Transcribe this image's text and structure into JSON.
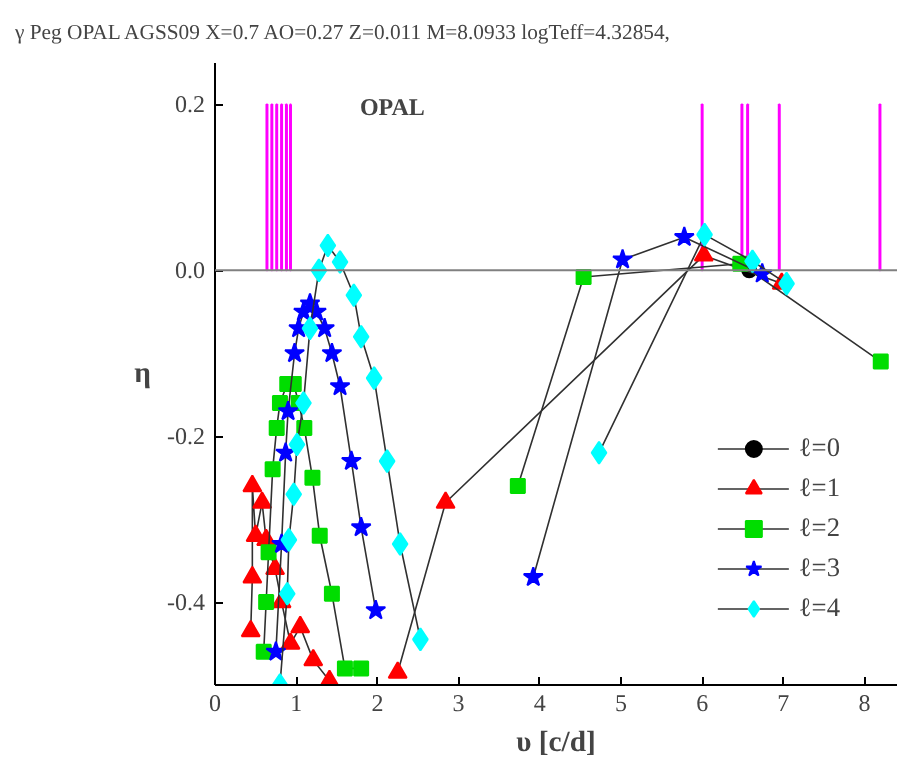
{
  "chart_data": {
    "type": "line",
    "title": "γ Peg OPAL  AGSS09 X=0.7 AO=0.27 Z=0.011 M=8.0933 logTeff=4.32854,",
    "xlabel": "υ [c/d]",
    "ylabel": "η",
    "annotations": [
      "OPAL"
    ],
    "xlim": [
      0,
      8.4
    ],
    "ylim": [
      -0.5,
      0.25
    ],
    "xticks": [
      0,
      1,
      2,
      3,
      4,
      5,
      6,
      7,
      8
    ],
    "yticks": [
      {
        "value": -0.4,
        "label": "-0.4"
      },
      {
        "value": -0.2,
        "label": "-0.2"
      },
      {
        "value": 0.0,
        "label": "0.0"
      },
      {
        "value": 0.2,
        "label": "0.2"
      }
    ],
    "ref_lines": [
      {
        "axis": "y",
        "value": 0,
        "color": "#808080"
      }
    ],
    "grid": false,
    "legend": "bottom right",
    "line_style": "solid",
    "series": [
      {
        "type": "bar",
        "color": "#ff00ff",
        "x": [
          0.64,
          0.7,
          0.76,
          0.82,
          0.88,
          0.93,
          6.0,
          6.49,
          6.56,
          6.95,
          8.19
        ],
        "values": [
          0.2,
          0.2,
          0.2,
          0.2,
          0.2,
          0.2,
          0.2,
          0.2,
          0.2,
          0.2,
          0.2
        ]
      },
      {
        "name": "ℓ=0",
        "color": "#000000",
        "marker": "circle",
        "x": [
          6.58
        ],
        "values": [
          0.0
        ]
      },
      {
        "name": "ℓ=1",
        "color": "#ff0000",
        "marker": "triangle",
        "x": [
          0.44,
          0.46,
          0.46,
          0.5,
          0.58,
          0.63,
          0.74,
          0.82,
          0.93,
          1.05,
          1.21,
          1.41,
          1.8,
          2.25,
          2.84,
          6.02,
          6.98
        ],
        "values": [
          -0.435,
          -0.37,
          -0.26,
          -0.32,
          -0.28,
          -0.325,
          -0.36,
          -0.4,
          -0.45,
          -0.43,
          -0.47,
          -0.495,
          null,
          -0.485,
          -0.28,
          0.018,
          -0.016
        ]
      },
      {
        "name": "ℓ=2",
        "color": "#00dd00",
        "marker": "square",
        "x": [
          0.6,
          0.63,
          0.66,
          0.71,
          0.76,
          0.8,
          0.89,
          0.97,
          1.03,
          1.1,
          1.2,
          1.29,
          1.44,
          1.6,
          1.8,
          2.8,
          3.73,
          4.54,
          6.47,
          8.2
        ],
        "values": [
          -0.46,
          -0.4,
          -0.34,
          -0.24,
          -0.19,
          -0.16,
          -0.137,
          -0.137,
          -0.16,
          -0.19,
          -0.25,
          -0.32,
          -0.39,
          -0.48,
          -0.48,
          null,
          -0.26,
          -0.008,
          0.008,
          -0.11
        ]
      },
      {
        "name": "ℓ=3",
        "color": "#0000ff",
        "marker": "star",
        "x": [
          0.75,
          0.82,
          0.87,
          0.9,
          0.98,
          1.03,
          1.09,
          1.17,
          1.25,
          1.35,
          1.44,
          1.54,
          1.68,
          1.8,
          1.98,
          3.0,
          3.92,
          5.02,
          5.78,
          6.74
        ],
        "values": [
          -0.46,
          -0.33,
          -0.22,
          -0.17,
          -0.1,
          -0.07,
          -0.05,
          -0.04,
          -0.05,
          -0.07,
          -0.1,
          -0.14,
          -0.23,
          -0.31,
          -0.41,
          null,
          -0.37,
          0.013,
          0.04,
          -0.004
        ]
      },
      {
        "name": "ℓ=4",
        "color": "#00ffff",
        "marker": "diamond",
        "x": [
          0.8,
          0.89,
          0.91,
          0.97,
          1.01,
          1.09,
          1.17,
          1.28,
          1.39,
          1.54,
          1.71,
          1.8,
          1.96,
          2.12,
          2.28,
          2.53,
          3.5,
          4.73,
          6.03,
          6.62,
          7.04
        ],
        "values": [
          -0.5,
          -0.39,
          -0.325,
          -0.27,
          -0.21,
          -0.16,
          -0.07,
          0.0,
          0.03,
          0.01,
          -0.03,
          -0.08,
          -0.13,
          -0.23,
          -0.33,
          -0.445,
          null,
          -0.22,
          0.043,
          0.011,
          -0.016
        ]
      }
    ]
  }
}
